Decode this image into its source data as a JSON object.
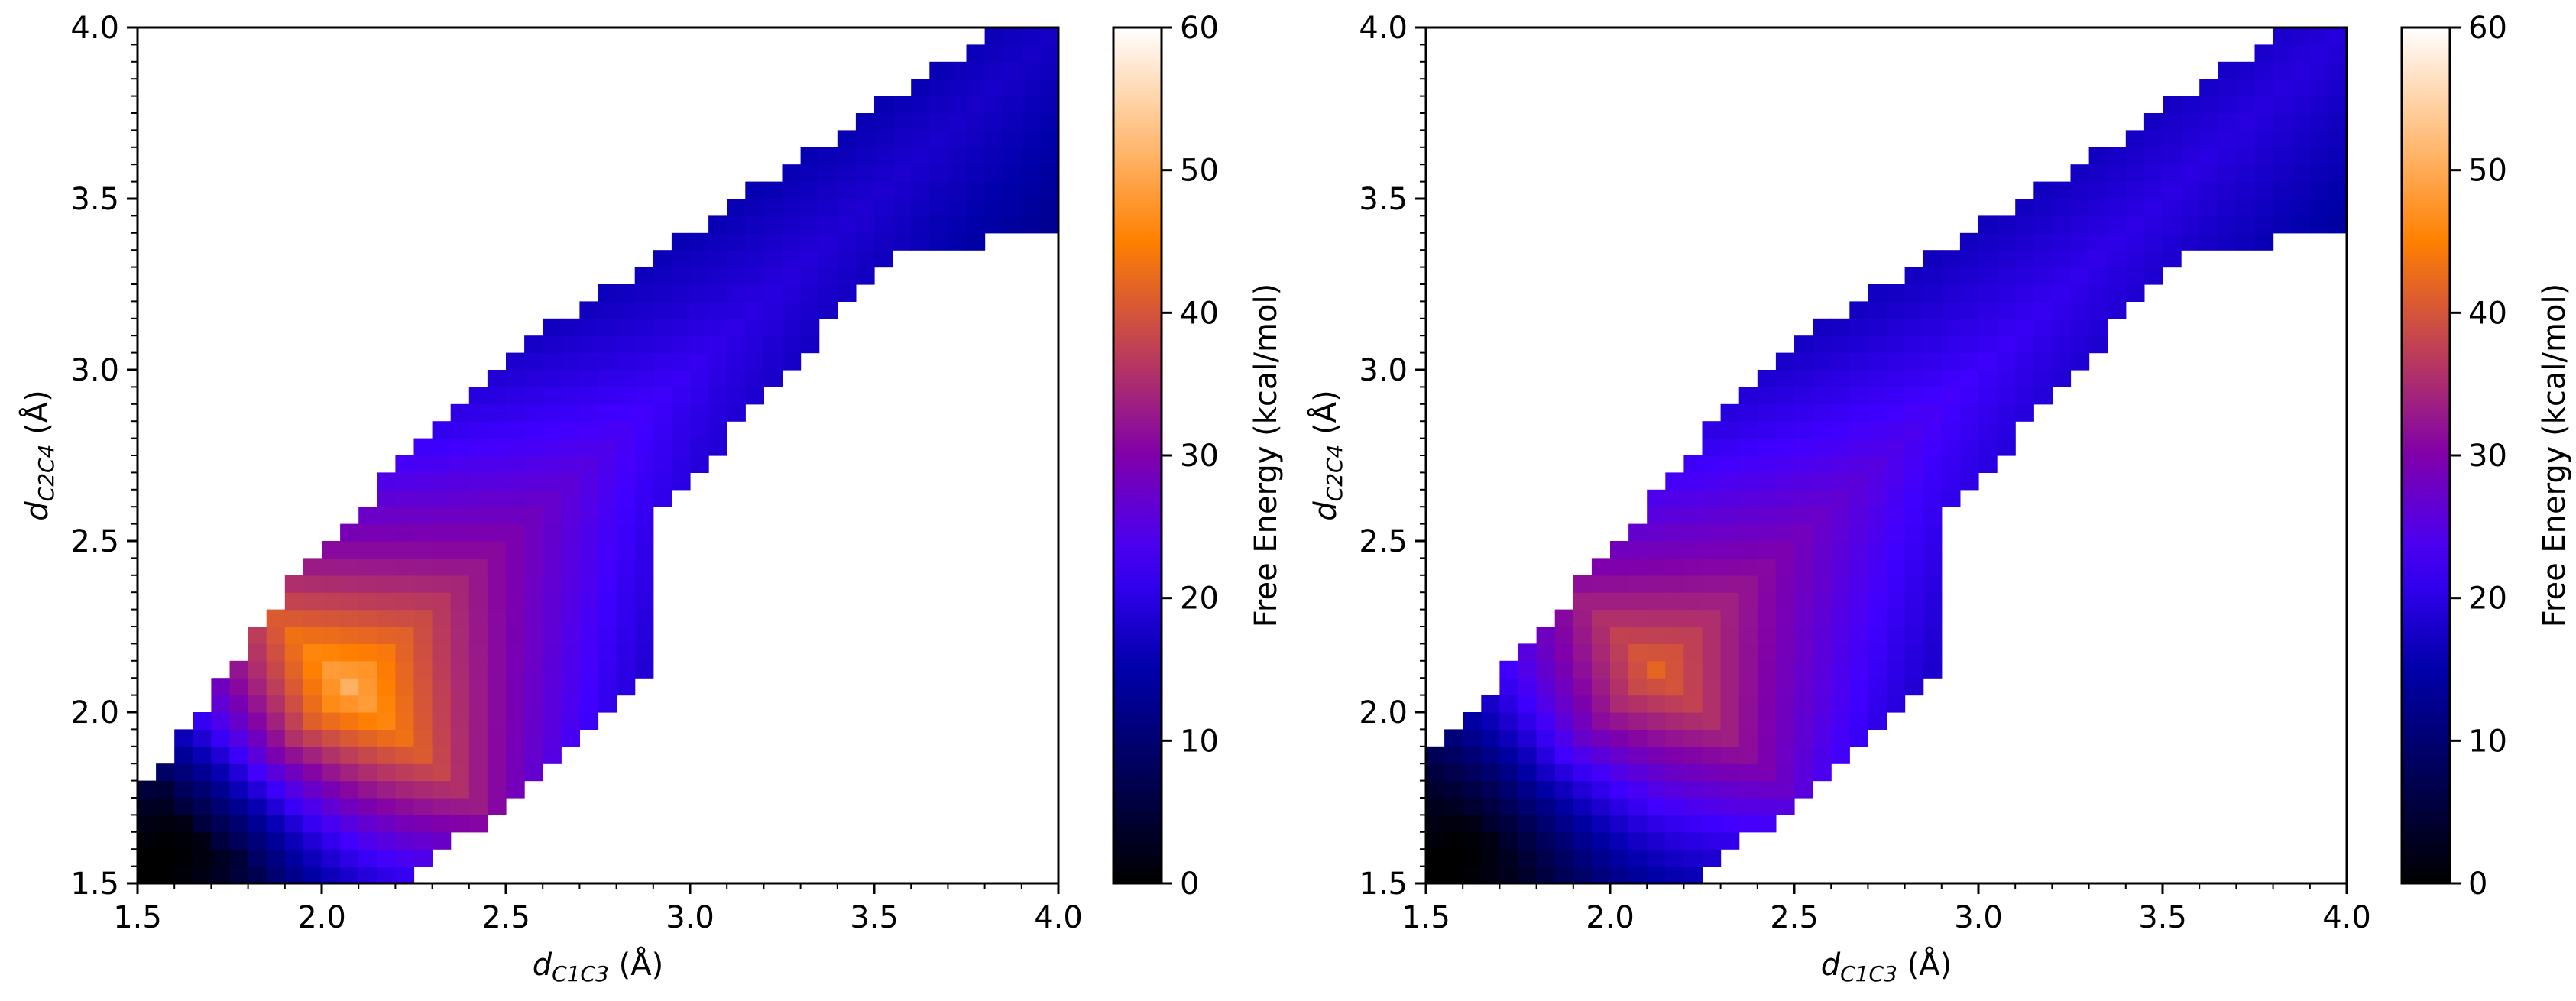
{
  "chart_data": [
    {
      "type": "heatmap",
      "title": "",
      "xlabel": "d",
      "xlabel_sub": "C1C3",
      "xlabel_unit": " (Å)",
      "ylabel": "d",
      "ylabel_sub": "C2C4",
      "ylabel_unit": " (Å)",
      "xlim": [
        1.5,
        4.0
      ],
      "ylim": [
        1.5,
        4.0
      ],
      "xticks": [
        "1.5",
        "2.0",
        "2.5",
        "3.0",
        "3.5",
        "4.0"
      ],
      "yticks": [
        "1.5",
        "2.0",
        "2.5",
        "3.0",
        "3.5",
        "4.0"
      ],
      "grid_step": 0.05,
      "grid": false,
      "colormap": "gnuplot2",
      "colorbar": {
        "label": "Free Energy (kcal/mol)",
        "range": [
          0,
          60
        ],
        "ticks": [
          "0",
          "10",
          "20",
          "30",
          "40",
          "50",
          "60"
        ]
      },
      "band": {
        "description": "diagonal band of computed cells; white elsewhere",
        "lower": [
          [
            1.5,
            1.5
          ],
          [
            2.2,
            1.5
          ],
          [
            2.5,
            1.72
          ],
          [
            2.9,
            2.1
          ],
          [
            2.9,
            2.55
          ],
          [
            3.55,
            3.35
          ],
          [
            4.0,
            3.4
          ],
          [
            4.0,
            4.0
          ]
        ],
        "upper": [
          [
            1.5,
            1.75
          ],
          [
            1.9,
            2.35
          ],
          [
            2.45,
            3.0
          ],
          [
            3.2,
            3.55
          ],
          [
            3.85,
            4.0
          ]
        ]
      },
      "energy_surface": {
        "minima": [
          {
            "x": 1.58,
            "y": 1.58,
            "value": 0
          }
        ],
        "ridge_peak": {
          "x": 2.05,
          "y": 2.1,
          "value": 51
        },
        "product_plateau": {
          "x": 3.8,
          "y": 3.8,
          "value": 17
        }
      }
    },
    {
      "type": "heatmap",
      "title": "",
      "xlabel": "d",
      "xlabel_sub": "C1C3",
      "xlabel_unit": " (Å)",
      "ylabel": "d",
      "ylabel_sub": "C2C4",
      "ylabel_unit": " (Å)",
      "xlim": [
        1.5,
        4.0
      ],
      "ylim": [
        1.5,
        4.0
      ],
      "xticks": [
        "1.5",
        "2.0",
        "2.5",
        "3.0",
        "3.5",
        "4.0"
      ],
      "yticks": [
        "1.5",
        "2.0",
        "2.5",
        "3.0",
        "3.5",
        "4.0"
      ],
      "grid_step": 0.05,
      "grid": false,
      "colormap": "gnuplot2",
      "colorbar": {
        "label": "Free Energy (kcal/mol)",
        "range": [
          0,
          60
        ],
        "ticks": [
          "0",
          "10",
          "20",
          "30",
          "40",
          "50",
          "60"
        ]
      },
      "band": {
        "description": "diagonal band of computed cells; white elsewhere",
        "lower": [
          [
            1.5,
            1.5
          ],
          [
            2.2,
            1.5
          ],
          [
            2.5,
            1.72
          ],
          [
            2.9,
            2.1
          ],
          [
            2.9,
            2.55
          ],
          [
            3.55,
            3.35
          ],
          [
            4.0,
            3.4
          ],
          [
            4.0,
            4.0
          ]
        ],
        "upper": [
          [
            1.5,
            1.85
          ],
          [
            1.9,
            2.35
          ],
          [
            2.45,
            3.05
          ],
          [
            3.2,
            3.55
          ],
          [
            3.85,
            4.0
          ]
        ]
      },
      "energy_surface": {
        "minima": [
          {
            "x": 1.58,
            "y": 1.58,
            "value": 0
          }
        ],
        "ridge_peak": {
          "x": 2.05,
          "y": 2.2,
          "value": 42
        },
        "product_plateau": {
          "x": 3.8,
          "y": 3.8,
          "value": 19
        }
      }
    }
  ]
}
